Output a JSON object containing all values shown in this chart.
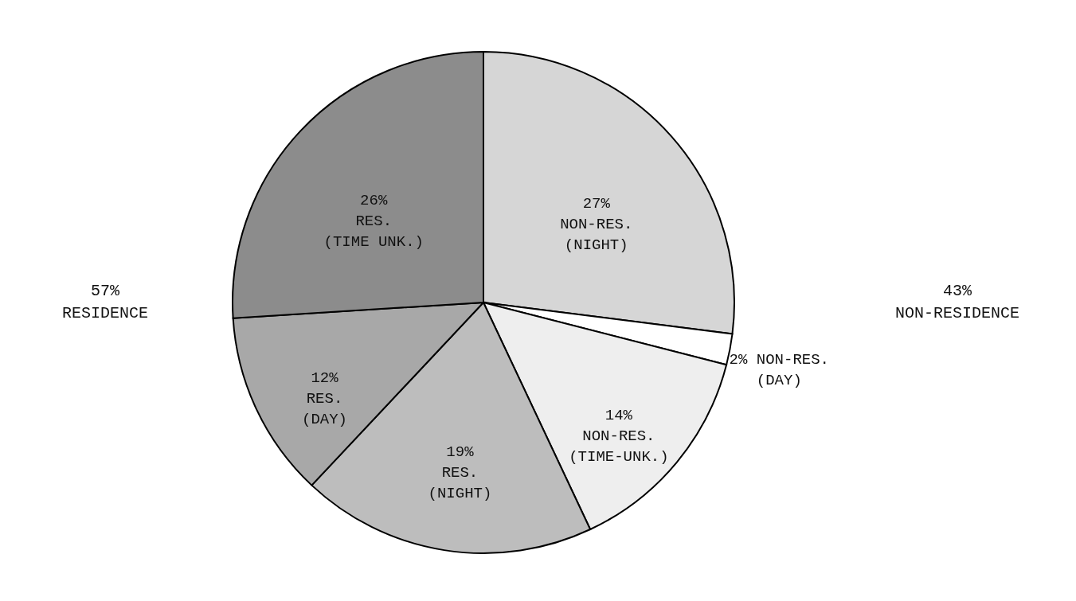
{
  "chart_data": {
    "type": "pie",
    "categories": [
      "NON-RES.\n(NIGHT)",
      "NON-RES.\n(DAY)",
      "NON-RES.\n(TIME-UNK.)",
      "RES.\n(NIGHT)",
      "RES.\n(DAY)",
      "RES.\n(TIME UNK.)"
    ],
    "values": [
      27,
      2,
      14,
      19,
      12,
      26
    ],
    "value_labels": [
      "27%",
      "2%",
      "14%",
      "19%",
      "12%",
      "26%"
    ],
    "colors": [
      "#d6d6d6",
      "#ffffff",
      "#eeeeee",
      "#bdbdbd",
      "#a8a8a8",
      "#8c8c8c"
    ],
    "annotations": [
      "57%\nRESIDENCE",
      "43%\nNON-RESIDENCE"
    ]
  }
}
